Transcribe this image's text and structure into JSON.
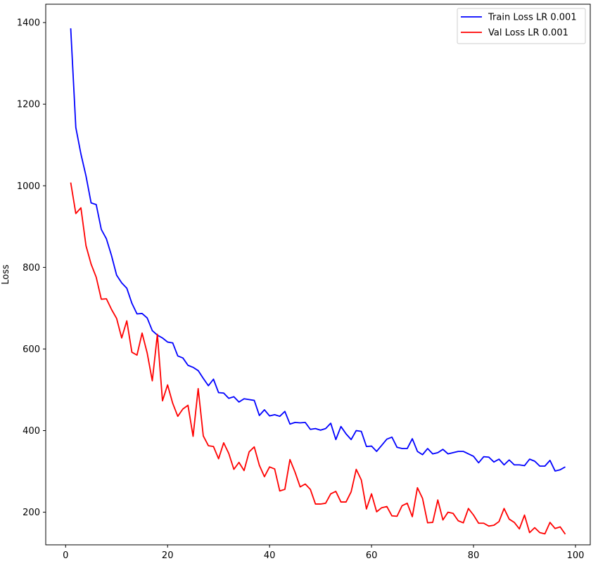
{
  "chart_data": {
    "type": "line",
    "title": "",
    "xlabel": "",
    "ylabel": "Loss",
    "xlim": [
      -3.9,
      102.9
    ],
    "ylim": [
      120,
      1445
    ],
    "xticks": [
      0,
      20,
      40,
      60,
      80,
      100
    ],
    "yticks": [
      200,
      400,
      600,
      800,
      1000,
      1200,
      1400
    ],
    "grid": false,
    "legend_position": "top-right",
    "x": [
      1,
      2,
      3,
      4,
      5,
      6,
      7,
      8,
      9,
      10,
      11,
      12,
      13,
      14,
      15,
      16,
      17,
      18,
      19,
      20,
      21,
      22,
      23,
      24,
      25,
      26,
      27,
      28,
      29,
      30,
      31,
      32,
      33,
      34,
      35,
      36,
      37,
      38,
      39,
      40,
      41,
      42,
      43,
      44,
      45,
      46,
      47,
      48,
      49,
      50,
      51,
      52,
      53,
      54,
      55,
      56,
      57,
      58,
      59,
      60,
      61,
      62,
      63,
      64,
      65,
      66,
      67,
      68,
      69,
      70,
      71,
      72,
      73,
      74,
      75,
      76,
      77,
      78,
      79,
      80,
      81,
      82,
      83,
      84,
      85,
      86,
      87,
      88,
      89,
      90,
      91,
      92,
      93,
      94,
      95,
      96,
      97,
      98
    ],
    "series": [
      {
        "name": "Train Loss LR 0.001",
        "color": "#0000ff",
        "values": [
          1386,
          1143,
          1078,
          1024,
          958,
          954,
          893,
          870,
          829,
          781,
          762,
          749,
          712,
          686,
          687,
          676,
          645,
          634,
          627,
          617,
          615,
          583,
          578,
          560,
          555,
          547,
          528,
          510,
          526,
          493,
          492,
          479,
          483,
          470,
          478,
          476,
          474,
          437,
          451,
          436,
          439,
          435,
          447,
          416,
          420,
          419,
          420,
          403,
          405,
          401,
          405,
          418,
          378,
          410,
          392,
          378,
          400,
          398,
          361,
          362,
          349,
          364,
          379,
          384,
          359,
          356,
          356,
          380,
          349,
          341,
          356,
          343,
          346,
          354,
          343,
          346,
          349,
          349,
          343,
          337,
          321,
          336,
          335,
          323,
          330,
          316,
          328,
          316,
          316,
          314,
          330,
          325,
          313,
          313,
          327,
          301,
          304,
          311
        ]
      },
      {
        "name": "Val Loss LR 0.001",
        "color": "#ff0000",
        "values": [
          1008,
          932,
          946,
          853,
          808,
          776,
          722,
          723,
          697,
          675,
          627,
          669,
          592,
          585,
          639,
          590,
          522,
          636,
          473,
          512,
          467,
          435,
          453,
          462,
          386,
          503,
          387,
          363,
          361,
          331,
          370,
          344,
          305,
          322,
          302,
          348,
          360,
          315,
          287,
          311,
          306,
          252,
          256,
          329,
          298,
          262,
          269,
          256,
          220,
          220,
          222,
          245,
          251,
          225,
          225,
          250,
          305,
          279,
          208,
          245,
          201,
          211,
          214,
          191,
          190,
          216,
          222,
          189,
          260,
          234,
          174,
          175,
          230,
          181,
          200,
          197,
          179,
          174,
          209,
          193,
          173,
          173,
          166,
          168,
          177,
          209,
          183,
          175,
          159,
          193,
          150,
          162,
          150,
          147,
          175,
          160,
          164,
          146
        ]
      }
    ]
  }
}
